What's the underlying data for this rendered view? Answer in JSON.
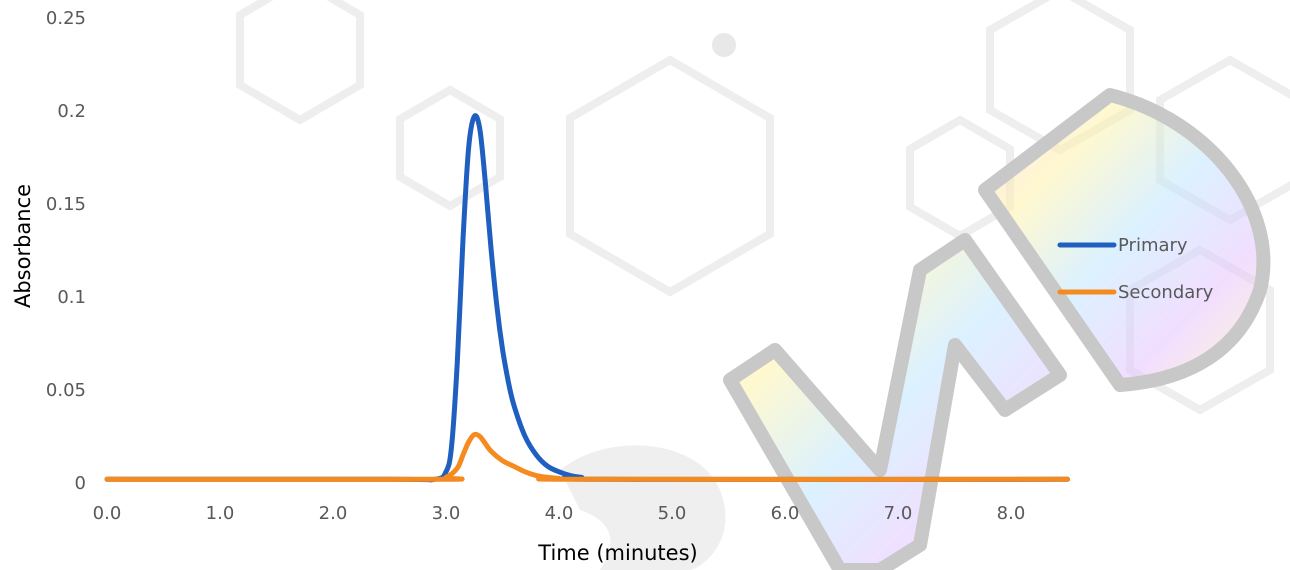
{
  "chart_data": {
    "type": "line",
    "xlabel": "Time (minutes)",
    "ylabel": "Absorbance",
    "xlim": [
      0.0,
      8.5
    ],
    "ylim": [
      0,
      0.25
    ],
    "x_ticks": [
      "0.0",
      "1.0",
      "2.0",
      "3.0",
      "4.0",
      "5.0",
      "6.0",
      "7.0",
      "8.0"
    ],
    "y_ticks": [
      "0",
      "0.05",
      "0.1",
      "0.15",
      "0.2",
      "0.25"
    ],
    "grid": false,
    "legend_position": "right",
    "series": [
      {
        "name": "Primary",
        "color": "#1f5fbf",
        "x": [
          0.0,
          2.5,
          2.9,
          3.0,
          3.05,
          3.1,
          3.15,
          3.2,
          3.25,
          3.3,
          3.35,
          3.4,
          3.45,
          3.5,
          3.55,
          3.6,
          3.7,
          3.8,
          3.9,
          4.0,
          4.1,
          4.2,
          4.4,
          8.5
        ],
        "y": [
          0.002,
          0.002,
          0.002,
          0.006,
          0.02,
          0.065,
          0.13,
          0.18,
          0.197,
          0.19,
          0.16,
          0.125,
          0.095,
          0.072,
          0.055,
          0.042,
          0.025,
          0.015,
          0.009,
          0.006,
          0.004,
          0.003,
          0.002,
          0.002
        ]
      },
      {
        "name": "Secondary",
        "color": "#f58a1f",
        "x": [
          0.0,
          2.9,
          3.0,
          3.1,
          3.15,
          3.2,
          3.25,
          3.3,
          3.35,
          3.4,
          3.5,
          3.6,
          3.7,
          3.8,
          3.9,
          4.0,
          4.2,
          8.5
        ],
        "y": [
          0.002,
          0.002,
          0.003,
          0.008,
          0.015,
          0.022,
          0.026,
          0.025,
          0.021,
          0.017,
          0.012,
          0.009,
          0.006,
          0.004,
          0.003,
          0.0025,
          0.002,
          0.002
        ]
      }
    ]
  }
}
